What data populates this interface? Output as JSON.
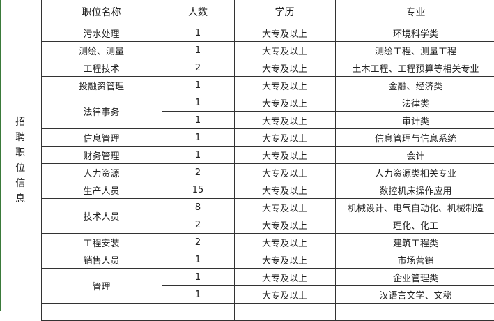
{
  "section_label": "招聘职位信息",
  "headers": [
    "职位名称",
    "人数",
    "学历",
    "专业"
  ],
  "rows": [
    {
      "position": "污水处理",
      "count": "1",
      "education": "大专及以上",
      "major": "环境科学类"
    },
    {
      "position": "测绘、测量",
      "count": "1",
      "education": "大专及以上",
      "major": "测绘工程、测量工程"
    },
    {
      "position": "工程技术",
      "count": "2",
      "education": "大专及以上",
      "major": "土木工程、工程预算等相关专业"
    },
    {
      "position": "投融资管理",
      "count": "1",
      "education": "大专及以上",
      "major": "金融、经济类"
    },
    {
      "position": "法律事务",
      "count": "1",
      "education": "大专及以上",
      "major": "法律类"
    },
    {
      "position": "",
      "count": "1",
      "education": "大专及以上",
      "major": "审计类"
    },
    {
      "position": "信息管理",
      "count": "1",
      "education": "大专及以上",
      "major": "信息管理与信息系统"
    },
    {
      "position": "财务管理",
      "count": "1",
      "education": "大专及以上",
      "major": "会计"
    },
    {
      "position": "人力资源",
      "count": "2",
      "education": "大专及以上",
      "major": "人力资源类相关专业"
    },
    {
      "position": "生产人员",
      "count": "15",
      "education": "大专及以上",
      "major": "数控机床操作应用"
    },
    {
      "position": "技术人员",
      "count": "8",
      "education": "大专及以上",
      "major": "机械设计、电气自动化、机械制造"
    },
    {
      "position": "",
      "count": "2",
      "education": "大专及以上",
      "major": "理化、化工"
    },
    {
      "position": "工程安装",
      "count": "2",
      "education": "大专及以上",
      "major": "建筑工程类"
    },
    {
      "position": "销售人员",
      "count": "1",
      "education": "大专及以上",
      "major": "市场营销"
    },
    {
      "position": "管理",
      "count": "1",
      "education": "大专及以上",
      "major": "企业管理类"
    },
    {
      "position": "",
      "count": "1",
      "education": "大专及以上",
      "major": "汉语言文学、文秘"
    }
  ]
}
